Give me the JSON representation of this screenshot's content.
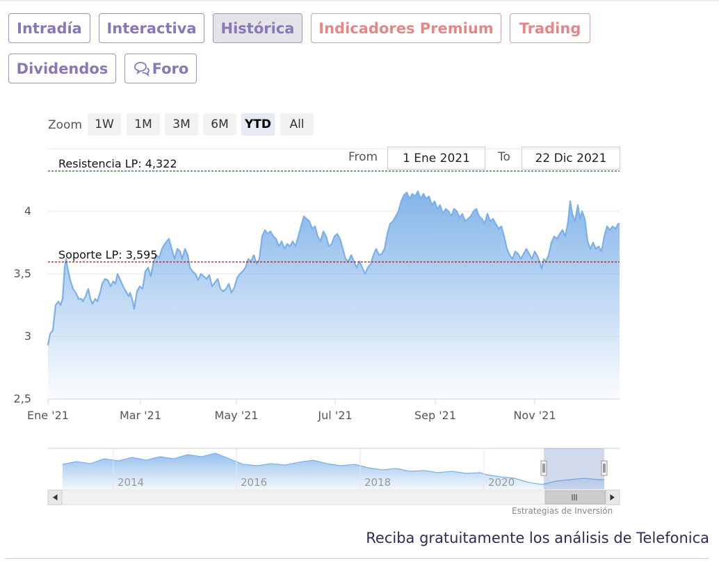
{
  "tabs": [
    {
      "label": "Intradía",
      "style": "purple",
      "active": false
    },
    {
      "label": "Interactiva",
      "style": "purple",
      "active": false
    },
    {
      "label": "Histórica",
      "style": "purple",
      "active": true
    },
    {
      "label": "Indicadores Premium",
      "style": "red",
      "active": false
    },
    {
      "label": "Trading",
      "style": "red",
      "active": false
    },
    {
      "label": "Dividendos",
      "style": "purple",
      "active": false
    },
    {
      "label": "Foro",
      "style": "purple",
      "active": false,
      "icon": "chat-bubbles-icon"
    }
  ],
  "zoom": {
    "label": "Zoom",
    "buttons": [
      "1W",
      "1M",
      "3M",
      "6M",
      "YTD",
      "All"
    ],
    "selected": "YTD"
  },
  "range": {
    "from_label": "From",
    "from_value": "1 Ene 2021",
    "to_label": "To",
    "to_value": "22 Dic 2021"
  },
  "chart_data": {
    "type": "area",
    "x_tick_labels": [
      "Ene '21",
      "Mar '21",
      "May '21",
      "Jul '21",
      "Sep '21",
      "Nov '21"
    ],
    "y_tick_labels": [
      "2,5",
      "3",
      "3,5",
      "4"
    ],
    "y_ticks": [
      2.5,
      3,
      3.5,
      4
    ],
    "ylim": [
      2.5,
      4.5
    ],
    "x_range": [
      "2021-01-01",
      "2021-12-22"
    ],
    "grid": true,
    "line_color": "#7cb0e8",
    "fill_color": "#7cb0e8",
    "series_points": [
      [
        0,
        2.93
      ],
      [
        3,
        3.02
      ],
      [
        7,
        3.05
      ],
      [
        11,
        3.25
      ],
      [
        15,
        3.28
      ],
      [
        18,
        3.25
      ],
      [
        21,
        3.3
      ],
      [
        24,
        3.55
      ],
      [
        26,
        3.62
      ],
      [
        28,
        3.55
      ],
      [
        32,
        3.45
      ],
      [
        36,
        3.38
      ],
      [
        40,
        3.35
      ],
      [
        44,
        3.3
      ],
      [
        48,
        3.3
      ],
      [
        50,
        3.28
      ],
      [
        54,
        3.32
      ],
      [
        58,
        3.38
      ],
      [
        61,
        3.3
      ],
      [
        64,
        3.26
      ],
      [
        68,
        3.3
      ],
      [
        71,
        3.28
      ],
      [
        75,
        3.35
      ],
      [
        78,
        3.42
      ],
      [
        82,
        3.46
      ],
      [
        86,
        3.45
      ],
      [
        90,
        3.4
      ],
      [
        94,
        3.44
      ],
      [
        97,
        3.42
      ],
      [
        100,
        3.5
      ],
      [
        104,
        3.45
      ],
      [
        108,
        3.4
      ],
      [
        112,
        3.36
      ],
      [
        116,
        3.32
      ],
      [
        118,
        3.35
      ],
      [
        121,
        3.3
      ],
      [
        124,
        3.22
      ],
      [
        128,
        3.36
      ],
      [
        132,
        3.4
      ],
      [
        136,
        3.38
      ],
      [
        140,
        3.52
      ],
      [
        144,
        3.55
      ],
      [
        148,
        3.48
      ],
      [
        152,
        3.6
      ],
      [
        156,
        3.65
      ],
      [
        160,
        3.63
      ],
      [
        164,
        3.7
      ],
      [
        168,
        3.74
      ],
      [
        171,
        3.76
      ],
      [
        174,
        3.78
      ],
      [
        178,
        3.7
      ],
      [
        182,
        3.62
      ],
      [
        186,
        3.7
      ],
      [
        190,
        3.68
      ],
      [
        193,
        3.62
      ],
      [
        197,
        3.7
      ],
      [
        201,
        3.65
      ],
      [
        204,
        3.55
      ],
      [
        208,
        3.52
      ],
      [
        212,
        3.5
      ],
      [
        216,
        3.45
      ],
      [
        220,
        3.5
      ],
      [
        224,
        3.48
      ],
      [
        228,
        3.46
      ],
      [
        232,
        3.49
      ],
      [
        236,
        3.4
      ],
      [
        240,
        3.43
      ],
      [
        244,
        3.46
      ],
      [
        248,
        3.38
      ],
      [
        252,
        3.36
      ],
      [
        256,
        3.38
      ],
      [
        260,
        3.42
      ],
      [
        264,
        3.35
      ],
      [
        268,
        3.39
      ],
      [
        272,
        3.47
      ],
      [
        276,
        3.5
      ],
      [
        280,
        3.52
      ],
      [
        284,
        3.55
      ],
      [
        288,
        3.62
      ],
      [
        292,
        3.6
      ],
      [
        296,
        3.65
      ],
      [
        300,
        3.58
      ],
      [
        304,
        3.62
      ],
      [
        308,
        3.8
      ],
      [
        312,
        3.85
      ],
      [
        316,
        3.82
      ],
      [
        320,
        3.84
      ],
      [
        324,
        3.8
      ],
      [
        328,
        3.78
      ],
      [
        332,
        3.72
      ],
      [
        336,
        3.76
      ],
      [
        340,
        3.7
      ],
      [
        344,
        3.74
      ],
      [
        348,
        3.72
      ],
      [
        352,
        3.76
      ],
      [
        356,
        3.72
      ],
      [
        360,
        3.8
      ],
      [
        364,
        3.88
      ],
      [
        368,
        3.96
      ],
      [
        372,
        3.94
      ],
      [
        376,
        3.92
      ],
      [
        380,
        3.86
      ],
      [
        384,
        3.88
      ],
      [
        388,
        3.8
      ],
      [
        392,
        3.76
      ],
      [
        396,
        3.84
      ],
      [
        400,
        3.8
      ],
      [
        404,
        3.72
      ],
      [
        408,
        3.74
      ],
      [
        412,
        3.8
      ],
      [
        416,
        3.82
      ],
      [
        420,
        3.78
      ],
      [
        424,
        3.7
      ],
      [
        428,
        3.62
      ],
      [
        432,
        3.6
      ],
      [
        436,
        3.65
      ],
      [
        440,
        3.6
      ],
      [
        444,
        3.55
      ],
      [
        448,
        3.6
      ],
      [
        452,
        3.55
      ],
      [
        456,
        3.5
      ],
      [
        460,
        3.55
      ],
      [
        464,
        3.58
      ],
      [
        468,
        3.65
      ],
      [
        472,
        3.7
      ],
      [
        476,
        3.65
      ],
      [
        480,
        3.66
      ],
      [
        484,
        3.7
      ],
      [
        488,
        3.82
      ],
      [
        492,
        3.9
      ],
      [
        496,
        3.92
      ],
      [
        500,
        3.96
      ],
      [
        504,
        4.0
      ],
      [
        508,
        4.08
      ],
      [
        512,
        4.13
      ],
      [
        516,
        4.15
      ],
      [
        520,
        4.1
      ],
      [
        524,
        4.14
      ],
      [
        528,
        4.12
      ],
      [
        532,
        4.16
      ],
      [
        536,
        4.1
      ],
      [
        540,
        4.14
      ],
      [
        544,
        4.1
      ],
      [
        548,
        4.12
      ],
      [
        552,
        4.05
      ],
      [
        556,
        4.08
      ],
      [
        560,
        4.02
      ],
      [
        564,
        4.05
      ],
      [
        568,
        3.98
      ],
      [
        572,
        4.02
      ],
      [
        576,
        4.0
      ],
      [
        580,
        3.96
      ],
      [
        584,
        4.02
      ],
      [
        588,
        4.0
      ],
      [
        592,
        3.95
      ],
      [
        596,
        3.98
      ],
      [
        600,
        3.92
      ],
      [
        604,
        3.94
      ],
      [
        608,
        3.96
      ],
      [
        612,
        4.0
      ],
      [
        616,
        4.02
      ],
      [
        620,
        3.96
      ],
      [
        624,
        3.94
      ],
      [
        628,
        3.9
      ],
      [
        632,
        3.98
      ],
      [
        636,
        3.92
      ],
      [
        640,
        3.94
      ],
      [
        644,
        3.9
      ],
      [
        648,
        3.86
      ],
      [
        652,
        3.88
      ],
      [
        656,
        3.8
      ],
      [
        660,
        3.7
      ],
      [
        664,
        3.65
      ],
      [
        668,
        3.62
      ],
      [
        672,
        3.68
      ],
      [
        676,
        3.66
      ],
      [
        680,
        3.62
      ],
      [
        684,
        3.66
      ],
      [
        688,
        3.7
      ],
      [
        692,
        3.66
      ],
      [
        696,
        3.62
      ],
      [
        700,
        3.68
      ],
      [
        704,
        3.64
      ],
      [
        708,
        3.58
      ],
      [
        710,
        3.54
      ],
      [
        713,
        3.62
      ],
      [
        716,
        3.6
      ],
      [
        720,
        3.65
      ],
      [
        724,
        3.75
      ],
      [
        728,
        3.8
      ],
      [
        732,
        3.78
      ],
      [
        736,
        3.82
      ],
      [
        740,
        3.85
      ],
      [
        744,
        3.8
      ],
      [
        748,
        3.92
      ],
      [
        751,
        4.08
      ],
      [
        754,
        3.98
      ],
      [
        758,
        3.92
      ],
      [
        762,
        4.05
      ],
      [
        765,
        3.94
      ],
      [
        768,
        4.0
      ],
      [
        772,
        3.94
      ],
      [
        776,
        3.76
      ],
      [
        780,
        3.7
      ],
      [
        784,
        3.75
      ],
      [
        788,
        3.7
      ],
      [
        792,
        3.72
      ],
      [
        796,
        3.68
      ],
      [
        800,
        3.8
      ],
      [
        804,
        3.88
      ],
      [
        808,
        3.85
      ],
      [
        812,
        3.88
      ],
      [
        816,
        3.86
      ],
      [
        820,
        3.9
      ],
      [
        822,
        3.9
      ]
    ],
    "reference_lines": [
      {
        "label": "Resistencia LP: 4,322",
        "value": 4.322,
        "color": "#2e7d32"
      },
      {
        "label": "Soporte LP: 3,595",
        "value": 3.595,
        "color": "#8b1a1a"
      }
    ],
    "navigator": {
      "year_labels": [
        "2014",
        "2016",
        "2018",
        "2020"
      ]
    }
  },
  "footer": {
    "credits": "Estrategias de Inversión",
    "cta": "Reciba gratuitamente los análisis de Telefonica"
  }
}
